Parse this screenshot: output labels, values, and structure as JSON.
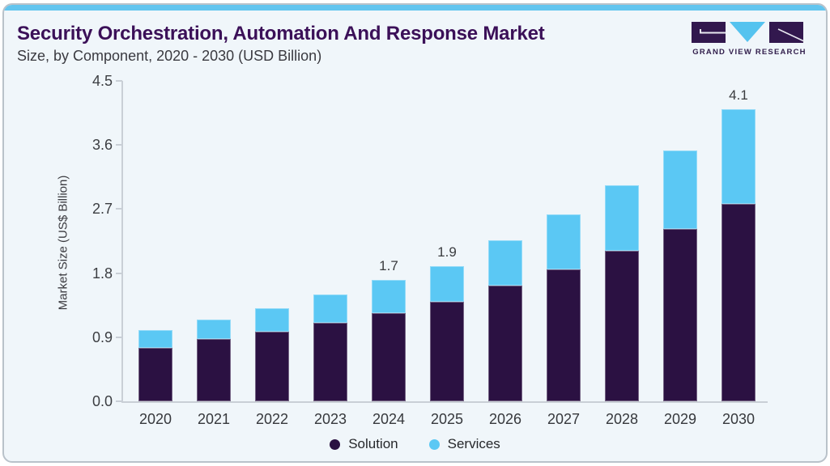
{
  "header": {
    "title": "Security Orchestration, Automation And Response Market",
    "subtitle": "Size, by Component, 2020 - 2030 (USD Billion)"
  },
  "logo": {
    "text": "GRAND VIEW RESEARCH",
    "dark_color": "#32184E",
    "blue_color": "#55C3EF"
  },
  "chart_data": {
    "type": "bar",
    "stacked": true,
    "title": "Security Orchestration, Automation And Response Market Size, by Component, 2020 - 2030 (USD Billion)",
    "xlabel": "",
    "ylabel": "Market Size (US$ Billion)",
    "ylim": [
      0,
      4.5
    ],
    "yticks": [
      "0.0",
      "0.9",
      "1.8",
      "2.7",
      "3.6",
      "4.5"
    ],
    "grid": false,
    "legend_position": "bottom",
    "categories": [
      "2020",
      "2021",
      "2022",
      "2023",
      "2024",
      "2025",
      "2026",
      "2027",
      "2028",
      "2029",
      "2030"
    ],
    "series": [
      {
        "name": "Solution",
        "color": "#2B1142",
        "values": [
          0.75,
          0.87,
          0.98,
          1.1,
          1.24,
          1.4,
          1.62,
          1.85,
          2.11,
          2.42,
          2.77
        ]
      },
      {
        "name": "Services",
        "color": "#5BC8F4",
        "values": [
          0.25,
          0.28,
          0.33,
          0.4,
          0.46,
          0.5,
          0.64,
          0.77,
          0.93,
          1.1,
          1.33
        ]
      }
    ],
    "total_labels": {
      "2024": "1.7",
      "2025": "1.9",
      "2030": "4.1"
    },
    "legend": [
      {
        "label": "Solution",
        "color": "#2B1142"
      },
      {
        "label": "Services",
        "color": "#5BC8F4"
      }
    ]
  },
  "colors": {
    "accent_bar": "#62C5EF",
    "card_background": "#F0F6FA",
    "card_border": "#B9C2CA",
    "title": "#3B1058",
    "axis_line": "#C9CFD6"
  }
}
